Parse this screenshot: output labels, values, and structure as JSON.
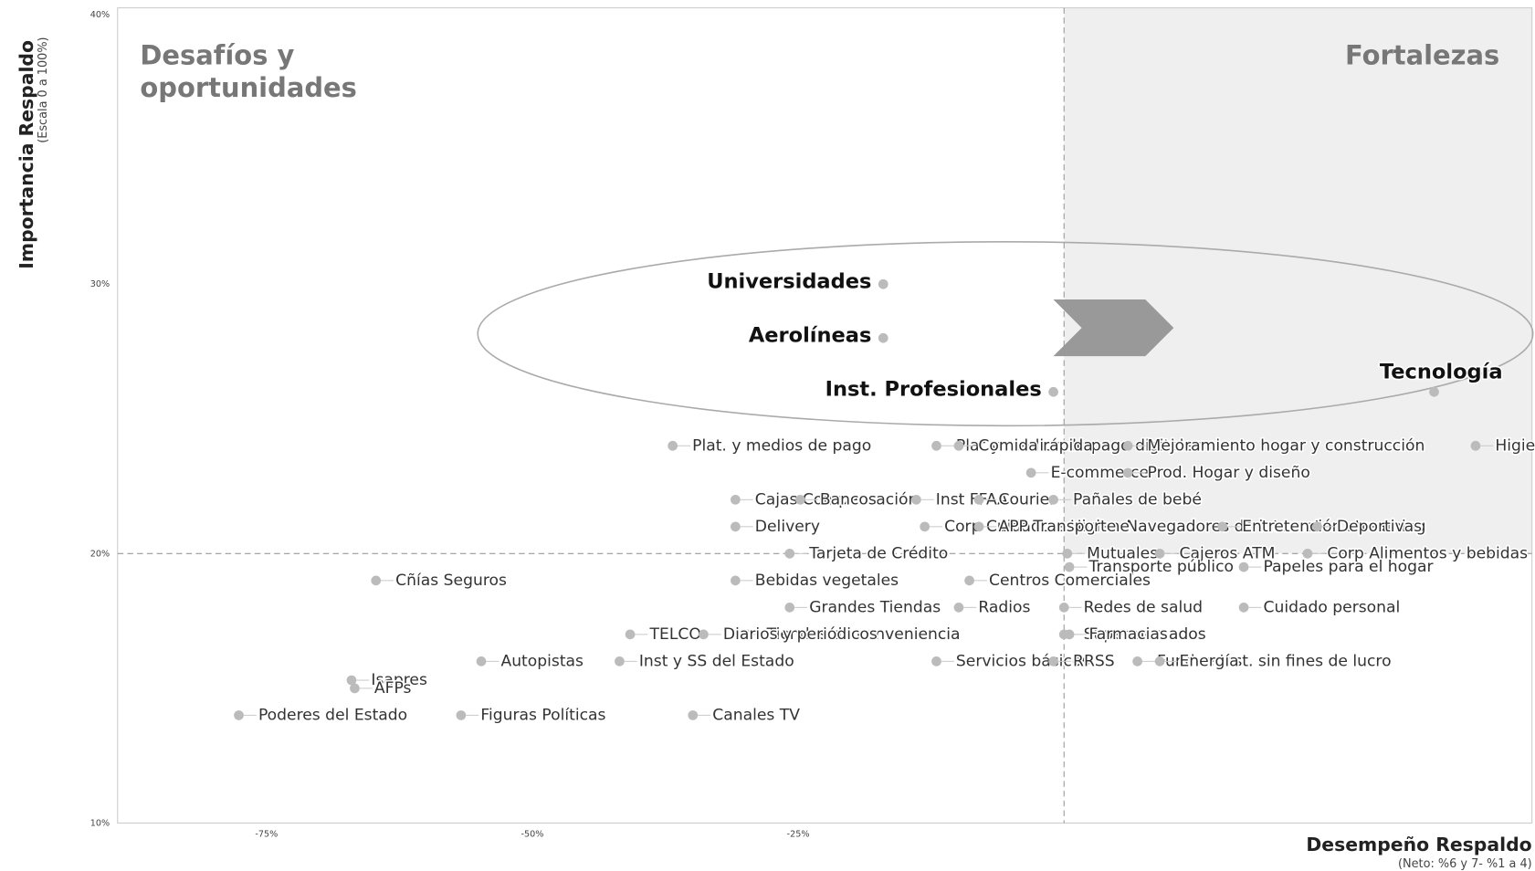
{
  "chart_data": {
    "type": "scatter",
    "quadrant_labels": [
      "Desafíos y",
      "oportunidades",
      "Fortalezas"
    ],
    "ylabel": "Importancia Respaldo",
    "ylabel_note": "(Escala 0 a 100%)",
    "xlabel": "Desempeño Respaldo",
    "xlabel_note": "(Neto: %6 y 7- %1 a 4)",
    "xlim": [
      -89,
      44
    ],
    "ylim": [
      10,
      40
    ],
    "xticks": [
      {
        "value": -75,
        "label": "-75%"
      },
      {
        "value": -50,
        "label": "-50%"
      },
      {
        "value": -25,
        "label": "-25%"
      }
    ],
    "yticks": [
      {
        "value": 10,
        "label": "10%"
      },
      {
        "value": 20,
        "label": "20%"
      },
      {
        "value": 30,
        "label": "30%"
      },
      {
        "value": 40,
        "label": "40%"
      }
    ],
    "reference_lines": {
      "x": 0,
      "y": 20
    },
    "color": "#bbbbbb",
    "labels": [
      "Universidades",
      "Aerolíneas",
      "Inst. Profesionales",
      "Tecnología",
      "Plat. y medios de pago",
      "Plat y medios de pago digitales",
      "Comida rápida",
      "Mejoramiento hogar y construcción",
      "Higiene y desinfección hogar",
      "E-commerce",
      "Prod. Hogar y diseño",
      "Cajas Compensación",
      "Bancos",
      "Inst FFAA",
      "Courier",
      "Pañales de bebé",
      "Navegadores de internet",
      "Entretención streaming",
      "Delivery",
      "Corp Cuidado e Higiene",
      "APP Transporte",
      "Deportivas",
      "Tarjeta de Crédito",
      "Mutuales",
      "Cajeros ATM",
      "Corp Alimentos y bebidas",
      "Transporte público",
      "Cñías Seguros",
      "Bebidas vegetales",
      "Centros Comerciales",
      "Papeles para el hogar",
      "Grandes Tiendas",
      "Radios",
      "Redes de salud",
      "Cuidado personal",
      "TELCO",
      "Tiendas de conveniencia",
      "Diarios y periódicos",
      "Supermercados",
      "Farmacias",
      "Autopistas",
      "Inst y SS del Estado",
      "Servicios básicos",
      "RRSS",
      "Fund. e Inst. sin fines de lucro",
      "Energía",
      "Isapres",
      "AFPs",
      "Poderes del Estado",
      "Figuras Políticas",
      "Canales TV"
    ],
    "x": [
      -17,
      -17,
      -1,
      34.8,
      -36.8,
      -12,
      -9.9,
      6,
      38.7,
      -3.1,
      6,
      -30.9,
      -24.8,
      -13.9,
      -8,
      -1,
      4,
      14.9,
      -30.9,
      -13.1,
      -8,
      23.8,
      -25.8,
      0.3,
      9,
      22.9,
      0.5,
      -64.7,
      -30.9,
      -8.9,
      16.9,
      -25.8,
      -9.9,
      0,
      16.9,
      -40.8,
      -29.8,
      -33.9,
      0,
      0.5,
      -54.8,
      -41.8,
      -12,
      -1,
      6.9,
      9,
      -67,
      -66.7,
      -77.6,
      -56.7,
      -34.9
    ],
    "y": [
      30,
      28,
      26,
      26,
      24,
      24,
      24,
      24,
      24,
      23,
      23,
      22,
      22,
      22,
      22,
      22,
      21,
      21,
      21,
      21,
      21,
      21,
      20,
      20,
      20,
      20,
      19.5,
      19,
      19,
      19,
      19.5,
      18,
      18,
      18,
      18,
      17,
      17,
      17,
      17,
      17,
      16,
      16,
      16,
      16,
      16,
      16,
      15.3,
      15,
      14,
      14,
      14
    ]
  }
}
